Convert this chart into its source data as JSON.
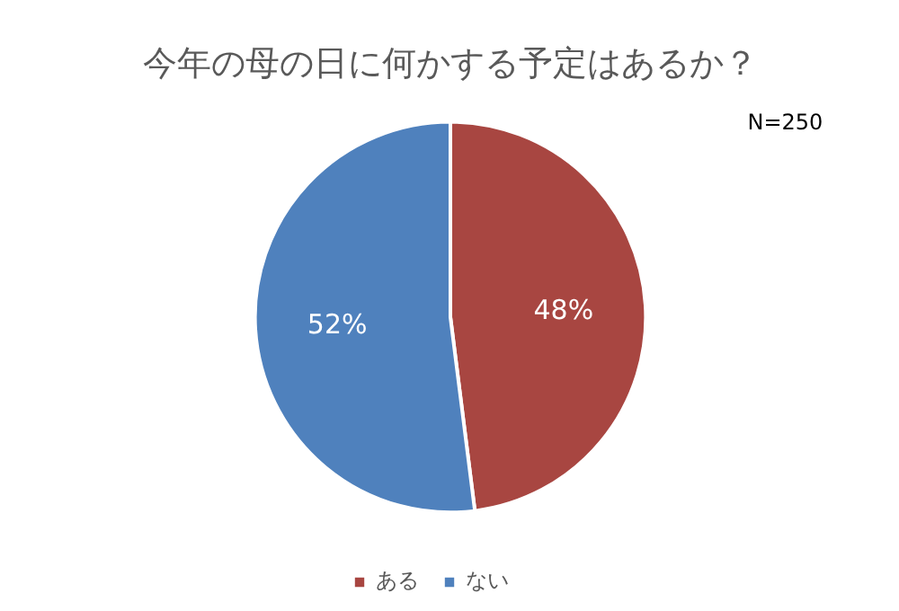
{
  "chart_data": {
    "type": "pie",
    "title": "今年の母の日に何かする予定はあるか？",
    "categories": [
      "ある",
      "ない"
    ],
    "values": [
      48,
      52
    ],
    "colors": [
      "#a84641",
      "#4f81bd"
    ],
    "value_labels": [
      "48%",
      "52%"
    ],
    "legend": "bottom",
    "annotations": [
      "N=250"
    ]
  }
}
